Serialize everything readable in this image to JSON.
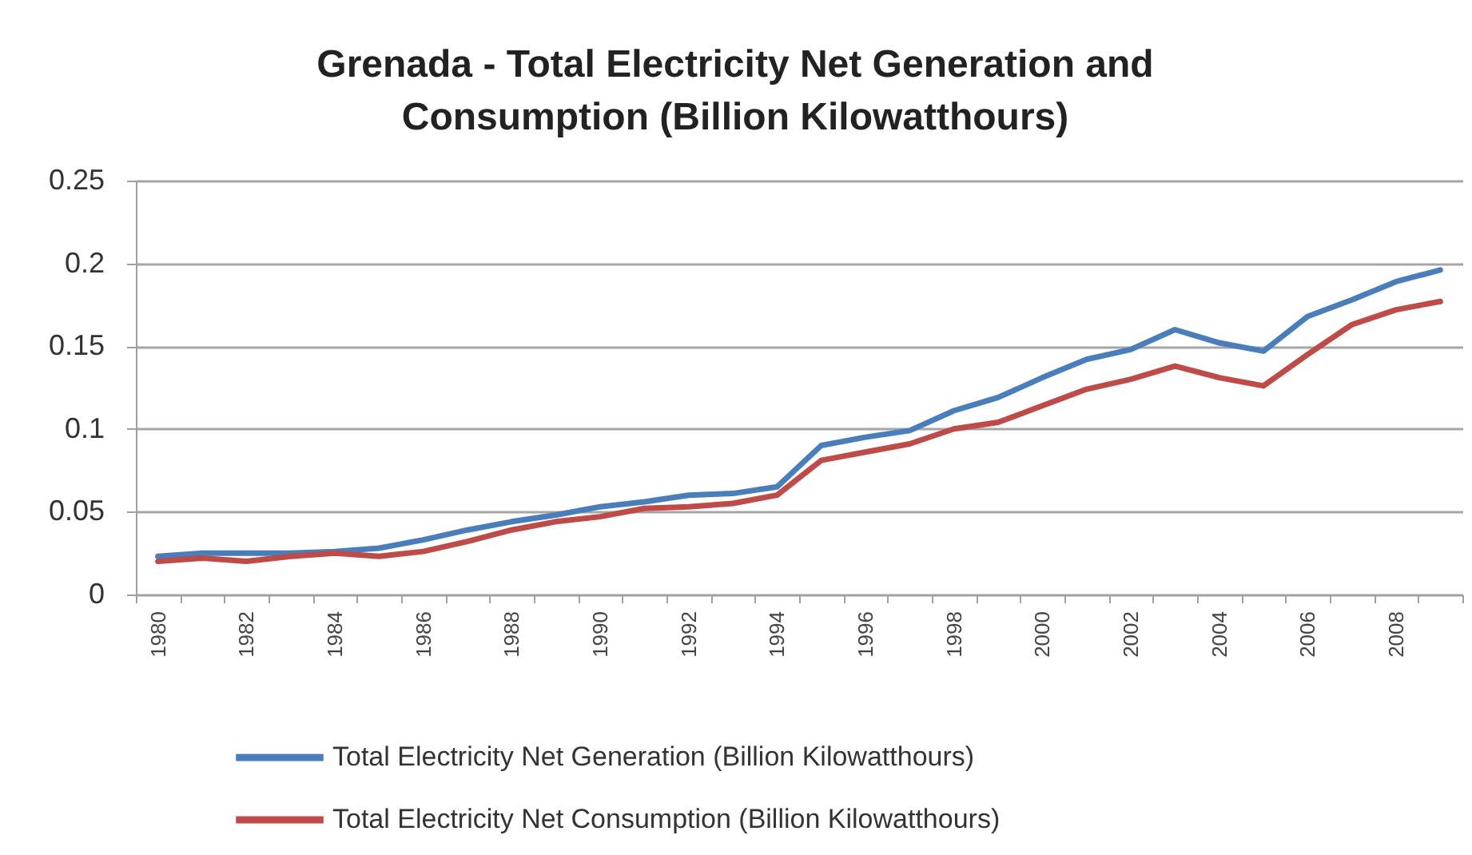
{
  "chart_data": {
    "type": "line",
    "title": "Grenada - Total Electricity Net Generation and Consumption (Billion Kilowatthours)",
    "categories": [
      "1980",
      null,
      "1982",
      null,
      "1984",
      null,
      "1986",
      null,
      "1988",
      null,
      "1990",
      null,
      "1992",
      null,
      "1994",
      null,
      "1996",
      null,
      "1998",
      null,
      "2000",
      null,
      "2002",
      null,
      "2004",
      null,
      "2006",
      null,
      "2008",
      null
    ],
    "series": [
      {
        "name": "Total Electricity Net Generation (Billion Kilowatthours)",
        "color": "#4a7ebb",
        "values": [
          0.023,
          0.025,
          0.025,
          0.025,
          0.026,
          0.028,
          0.033,
          0.039,
          0.044,
          0.048,
          0.053,
          0.056,
          0.06,
          0.061,
          0.065,
          0.09,
          0.095,
          0.099,
          0.111,
          0.119,
          0.131,
          0.142,
          0.148,
          0.16,
          0.152,
          0.147,
          0.168,
          0.178,
          0.189,
          0.196
        ]
      },
      {
        "name": "Total Electricity Net Consumption (Billion Kilowatthours)",
        "color": "#be4b48",
        "values": [
          0.02,
          0.022,
          0.02,
          0.023,
          0.025,
          0.023,
          0.026,
          0.032,
          0.039,
          0.044,
          0.047,
          0.052,
          0.053,
          0.055,
          0.06,
          0.081,
          0.086,
          0.091,
          0.1,
          0.104,
          0.114,
          0.124,
          0.13,
          0.138,
          0.131,
          0.126,
          0.145,
          0.163,
          0.172,
          0.177
        ]
      }
    ],
    "ylim": [
      0,
      0.25
    ],
    "yticks": [
      0,
      0.05,
      0.1,
      0.15,
      0.2,
      0.25
    ],
    "grid": "y",
    "legend": "bottom"
  }
}
